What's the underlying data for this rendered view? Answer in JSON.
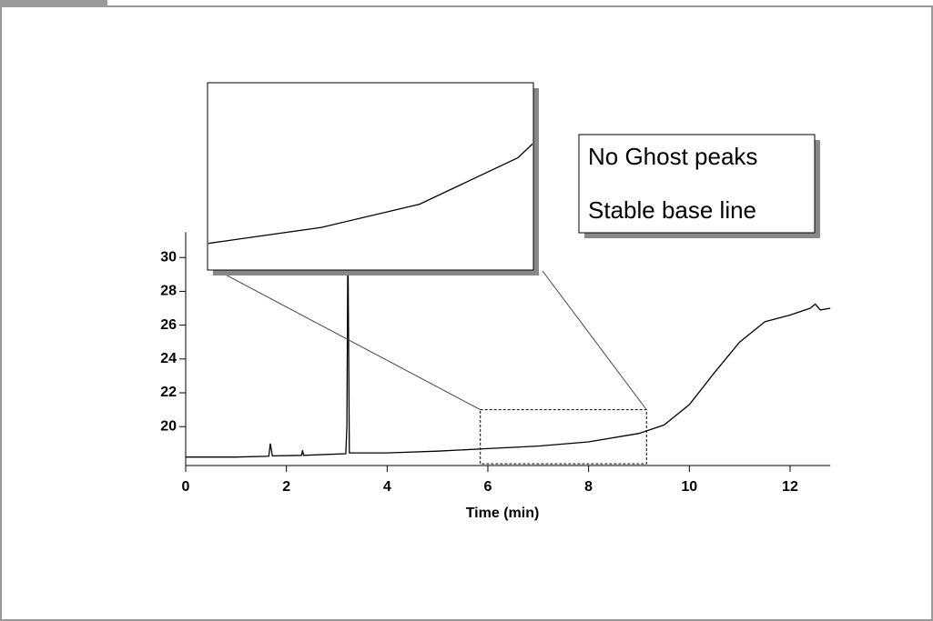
{
  "chart_data": {
    "type": "line",
    "xlabel": "Time (min)",
    "x": [
      0,
      1,
      1.65,
      1.68,
      1.72,
      2.3,
      2.32,
      2.34,
      3.18,
      3.2,
      3.22,
      3.25,
      4,
      5,
      6,
      7,
      8,
      9,
      9.5,
      10,
      10.5,
      11,
      11.5,
      12,
      12.4,
      12.5,
      12.6,
      12.8
    ],
    "values": [
      18.2,
      18.2,
      18.25,
      19.0,
      18.27,
      18.3,
      18.6,
      18.3,
      18.4,
      20.0,
      31.0,
      18.45,
      18.45,
      18.55,
      18.7,
      18.85,
      19.1,
      19.6,
      20.1,
      21.3,
      23.2,
      25.0,
      26.2,
      26.6,
      27.0,
      27.25,
      26.9,
      27.0
    ],
    "color": "#000000",
    "xlim": [
      0,
      12.8
    ],
    "ylim": [
      17.7,
      31.5
    ],
    "xticks": [
      0,
      2,
      4,
      6,
      8,
      10,
      12
    ],
    "yticks": [
      20,
      22,
      24,
      26,
      28,
      30
    ],
    "zoom_box": {
      "xlim": [
        5.85,
        9.15
      ],
      "ylim": [
        17.8,
        21.0
      ]
    },
    "inset": {
      "xlim": [
        5.85,
        9.15
      ],
      "ylim": [
        18.4,
        20.4
      ]
    },
    "annotations": [
      "No Ghost peaks",
      "Stable base line"
    ]
  }
}
